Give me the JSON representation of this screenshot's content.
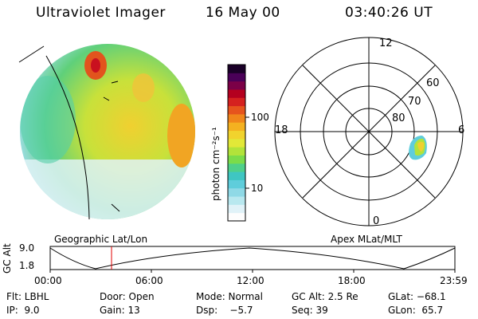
{
  "header": {
    "instrument": "Ultraviolet Imager",
    "date": "16 May 00",
    "time": "03:40:26 UT"
  },
  "colorbar": {
    "unit_label": "photon cm⁻²s⁻¹",
    "ticks": [
      "100",
      "10"
    ],
    "colors": [
      "#fdfdfd",
      "#e0f2f8",
      "#b8e8ef",
      "#8fd9e6",
      "#5fcddb",
      "#3fc6c2",
      "#4fd08a",
      "#7bdc4a",
      "#b2e33a",
      "#e2e838",
      "#f1d32d",
      "#f4b120",
      "#f0861b",
      "#e6541d",
      "#d5211f",
      "#b4001f",
      "#7b0047",
      "#4a0058",
      "#1a0028"
    ]
  },
  "polar_plot": {
    "clock_labels": [
      "12",
      "18",
      "6",
      "0"
    ],
    "lat_labels": [
      "60",
      "70",
      "80"
    ]
  },
  "timeline": {
    "left_title": "Geographic Lat/Lon",
    "right_title": "Apex MLat/MLT",
    "axis_title": "GC Alt",
    "ymax": "9.0",
    "ymin": "1.8",
    "time_ticks": [
      "00:00",
      "06:00",
      "12:00",
      "18:00",
      "23:59"
    ],
    "marker_color": "#e00000"
  },
  "info": {
    "flt": "Flt: LBHL",
    "door": "Door: Open",
    "mode": "Mode: Normal",
    "gc_alt": "GC Alt: 2.5 Re",
    "glat": "GLat: −68.1",
    "ip": "IP:  9.0",
    "gain": "Gain: 13",
    "dsp": "Dsp:    −5.7",
    "seq": "Seq: 39",
    "glon": "GLon:  65.7"
  }
}
